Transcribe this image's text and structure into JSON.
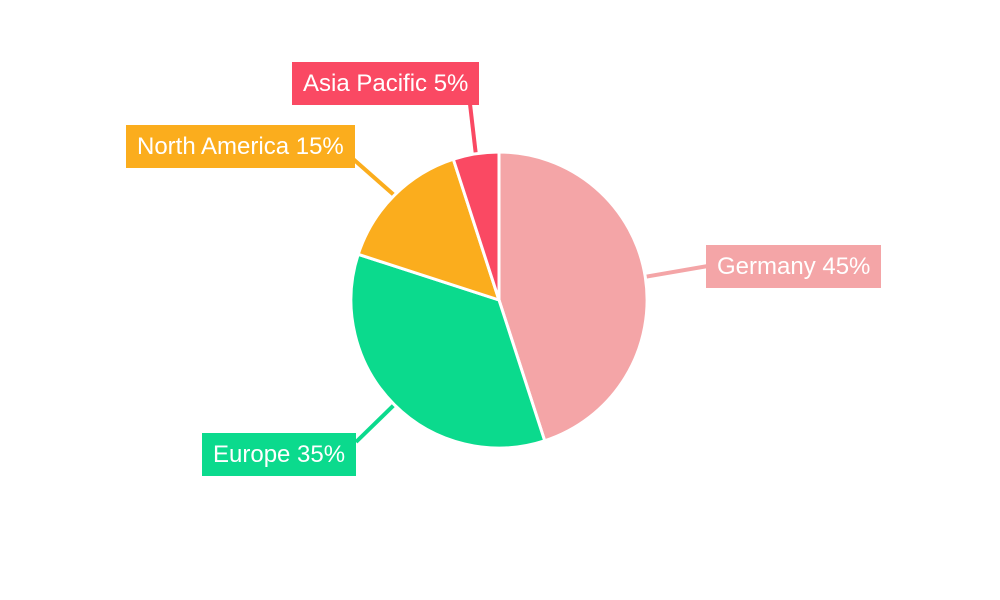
{
  "chart_data": {
    "type": "pie",
    "title": "",
    "legend": "none",
    "background_color": "#FFFFFF",
    "label_text_color": "#FFFFFF",
    "slice_border_color": "#FFFFFF",
    "start_angle": "12 o'clock, clockwise",
    "label_style": "external colored boxes with leader lines matching slice color",
    "slices": [
      {
        "id": "germany",
        "name": "Germany",
        "value": 45,
        "unit": "%",
        "label_text": "Germany 45%",
        "color": "#F4A5A7"
      },
      {
        "id": "europe",
        "name": "Europe",
        "value": 35,
        "unit": "%",
        "label_text": "Europe 35%",
        "color": "#0BDA8D"
      },
      {
        "id": "north-america",
        "name": "North America",
        "value": 15,
        "unit": "%",
        "label_text": "North America 15%",
        "color": "#FBAD1D"
      },
      {
        "id": "asia-pacific",
        "name": "Asia Pacific",
        "value": 5,
        "unit": "%",
        "label_text": "Asia Pacific 5%",
        "color": "#FA4963"
      }
    ]
  }
}
